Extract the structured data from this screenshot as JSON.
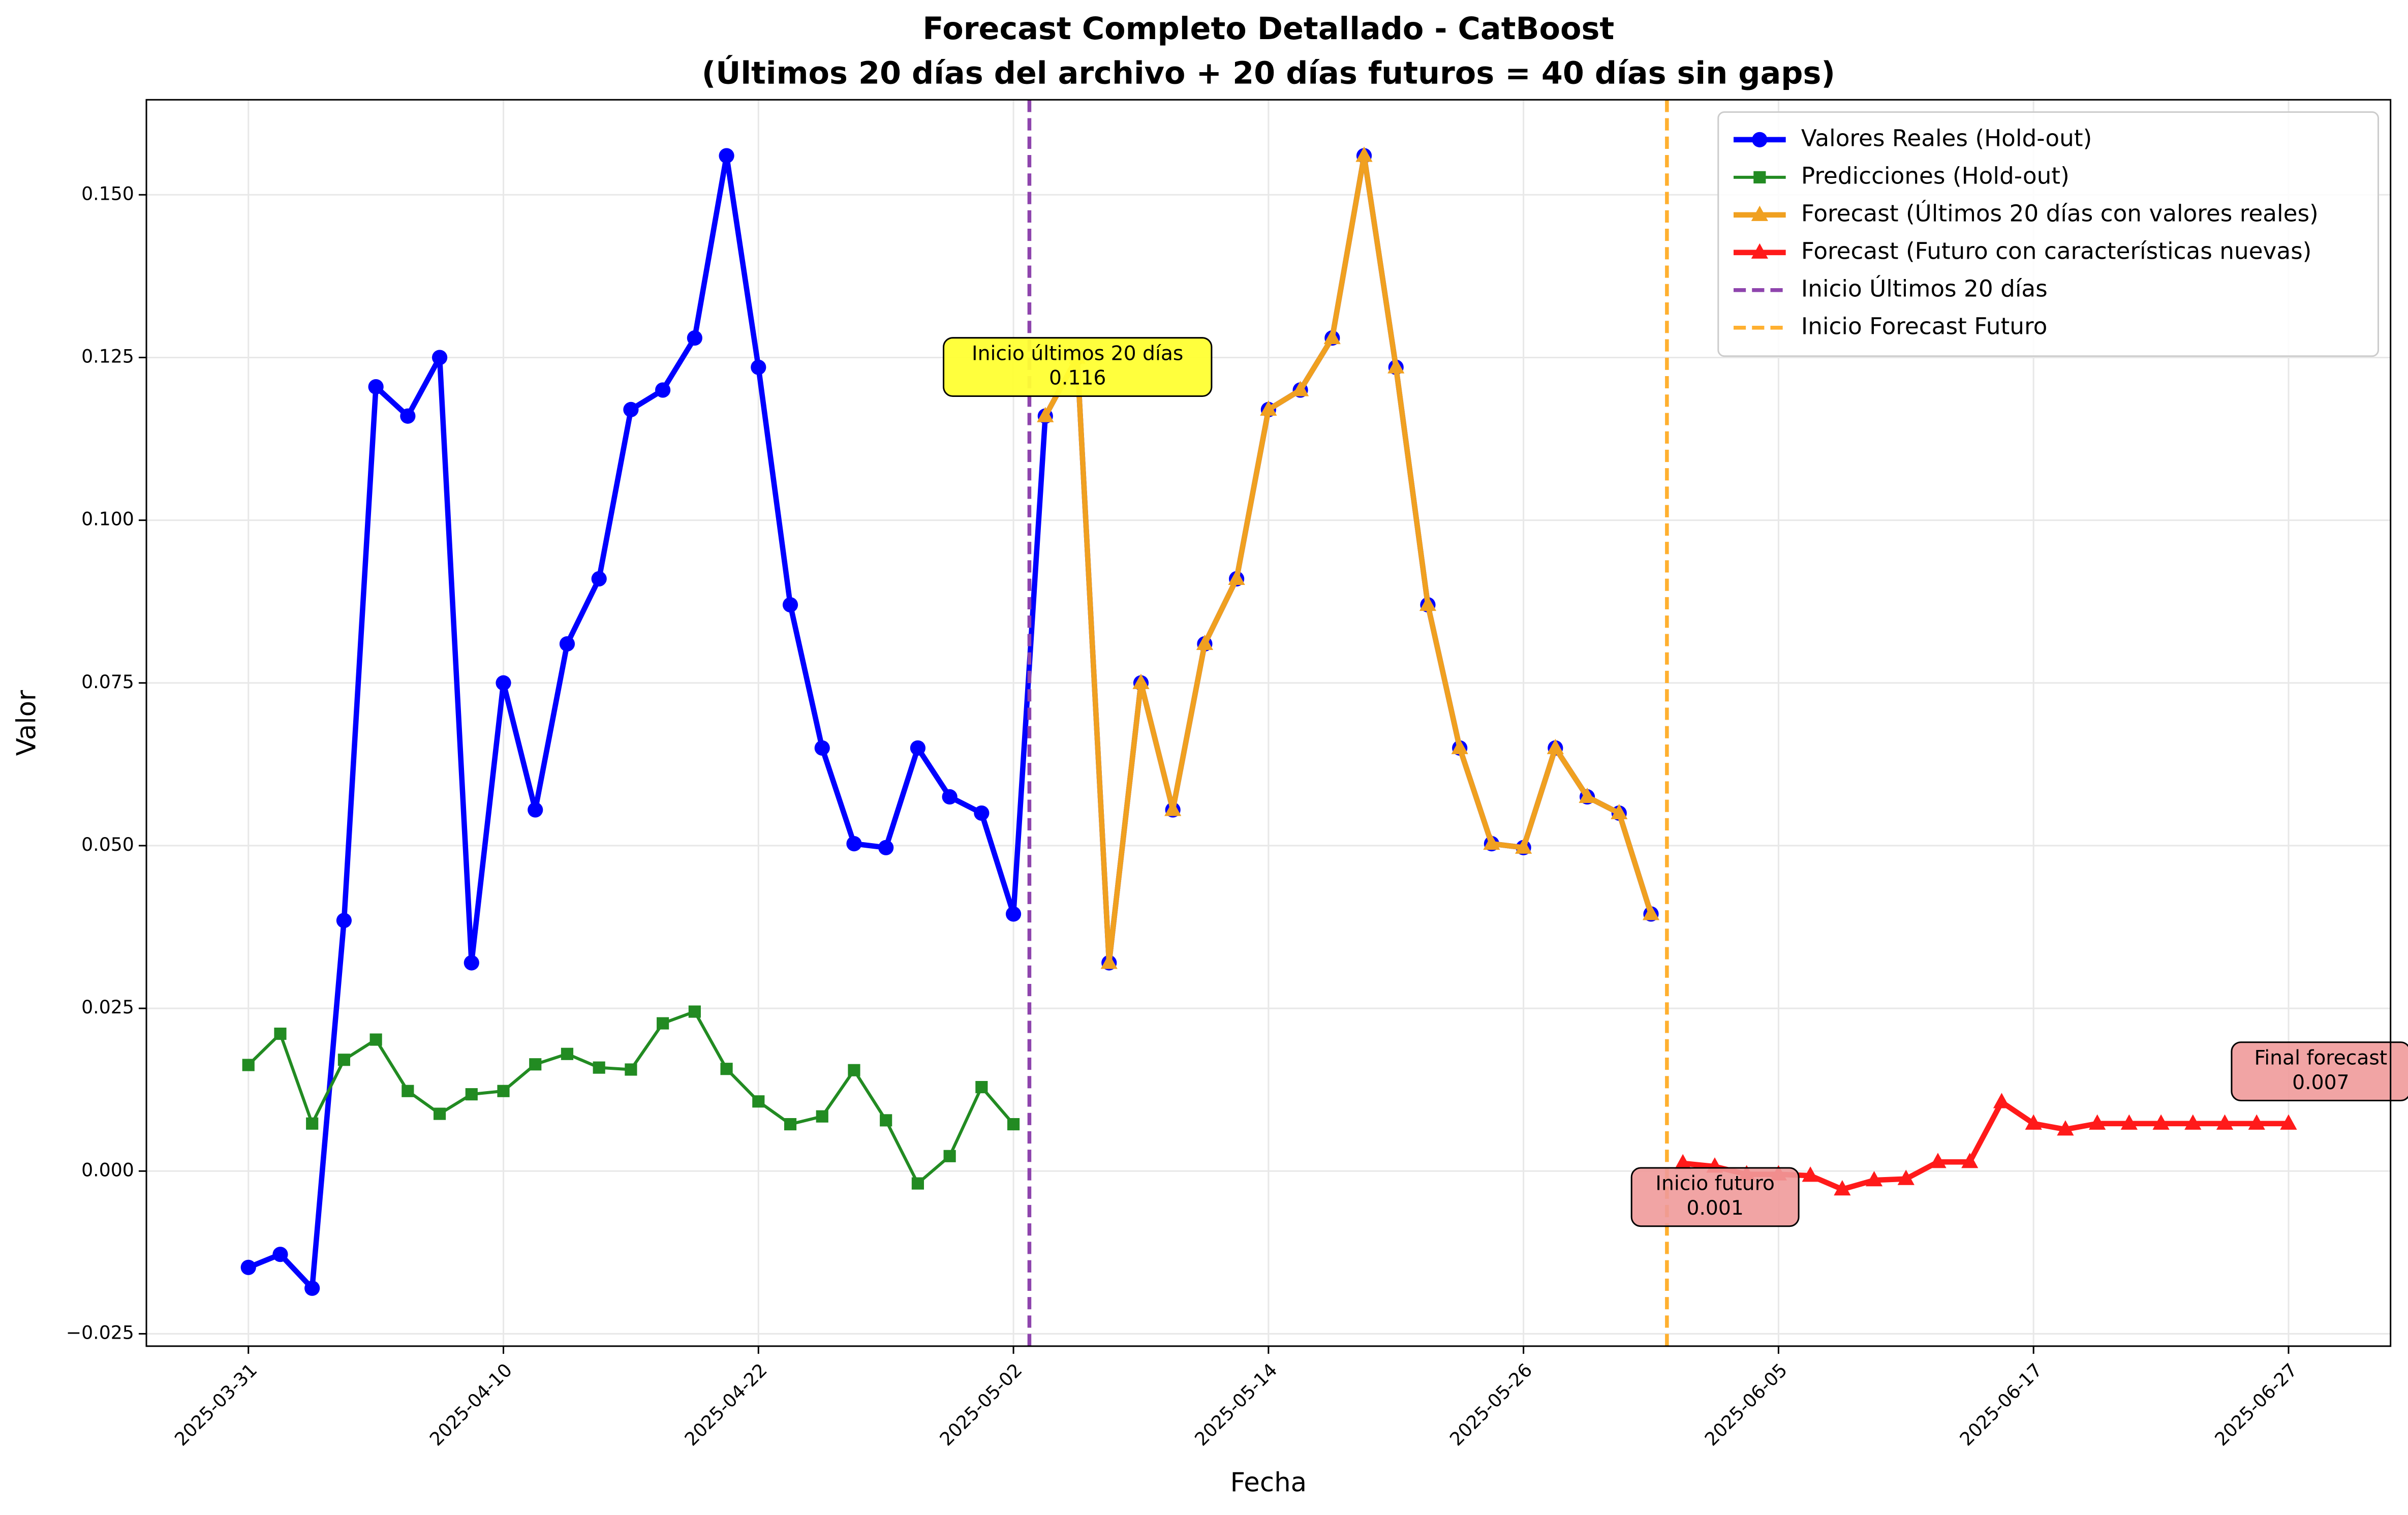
{
  "chart_data": {
    "type": "line",
    "title": [
      "Forecast Completo Detallado - CatBoost",
      "(Últimos 20 días del archivo + 20 días futuros = 40 días sin gaps)"
    ],
    "xlabel": "Fecha",
    "ylabel": "Valor",
    "x": [
      "2025-03-31",
      "2025-04-01",
      "2025-04-02",
      "2025-04-03",
      "2025-04-04",
      "2025-04-07",
      "2025-04-08",
      "2025-04-09",
      "2025-04-10",
      "2025-04-11",
      "2025-04-14",
      "2025-04-15",
      "2025-04-16",
      "2025-04-17",
      "2025-04-18",
      "2025-04-21",
      "2025-04-22",
      "2025-04-23",
      "2025-04-24",
      "2025-04-25",
      "2025-04-28",
      "2025-04-29",
      "2025-04-30",
      "2025-05-01",
      "2025-05-02",
      "2025-05-05",
      "2025-05-06",
      "2025-05-07",
      "2025-05-08",
      "2025-05-09",
      "2025-05-12",
      "2025-05-13",
      "2025-05-14",
      "2025-05-15",
      "2025-05-16",
      "2025-05-19",
      "2025-05-20",
      "2025-05-21",
      "2025-05-22",
      "2025-05-23",
      "2025-05-26",
      "2025-05-27",
      "2025-05-28",
      "2025-05-29",
      "2025-05-30",
      "2025-06-02",
      "2025-06-03",
      "2025-06-04",
      "2025-06-05",
      "2025-06-06",
      "2025-06-09",
      "2025-06-10",
      "2025-06-11",
      "2025-06-12",
      "2025-06-13",
      "2025-06-16",
      "2025-06-17",
      "2025-06-18",
      "2025-06-19",
      "2025-06-20",
      "2025-06-23",
      "2025-06-24",
      "2025-06-25",
      "2025-06-26",
      "2025-06-27"
    ],
    "xticks": [
      "2025-03-31",
      "2025-04-10",
      "2025-04-22",
      "2025-05-02",
      "2025-05-14",
      "2025-05-26",
      "2025-06-05",
      "2025-06-17",
      "2025-06-27"
    ],
    "ylim": [
      -0.0269,
      0.1646
    ],
    "yticks": [
      {
        "value": -0.025,
        "label": "−0.025"
      },
      {
        "value": 0,
        "label": "0.000"
      },
      {
        "value": 0.025,
        "label": "0.025"
      },
      {
        "value": 0.05,
        "label": "0.050"
      },
      {
        "value": 0.075,
        "label": "0.075"
      },
      {
        "value": 0.1,
        "label": "0.100"
      },
      {
        "value": 0.125,
        "label": "0.125"
      },
      {
        "value": 0.15,
        "label": "0.150"
      }
    ],
    "grid": true,
    "legend": "upper right",
    "series": [
      {
        "name": "Valores Reales (Hold-out)",
        "color": "#0000ff",
        "marker": "o",
        "width": 3.5,
        "values": [
          -0.0148,
          -0.0128,
          -0.018,
          0.0385,
          0.1205,
          0.116,
          0.125,
          0.032,
          0.075,
          0.0555,
          0.081,
          0.091,
          0.117,
          0.12,
          0.128,
          0.156,
          0.1235,
          0.087,
          0.065,
          0.0503,
          0.0497,
          0.065,
          0.0575,
          0.055,
          0.0395,
          0.116,
          0.125,
          0.032,
          0.075,
          0.0555,
          0.081,
          0.091,
          0.117,
          0.12,
          0.128,
          0.156,
          0.1235,
          0.087,
          0.065,
          0.0503,
          0.0497,
          0.065,
          0.0575,
          0.055,
          0.0395,
          null,
          null,
          null,
          null,
          null,
          null,
          null,
          null,
          null,
          null,
          null,
          null,
          null,
          null,
          null,
          null,
          null,
          null,
          null,
          null
        ]
      },
      {
        "name": "Predicciones (Hold-out)",
        "color": "#228b22",
        "marker": "s",
        "width": 2,
        "values": [
          0.0163,
          0.0211,
          0.0073,
          0.0171,
          0.0202,
          0.0123,
          0.0088,
          0.0118,
          0.0123,
          0.0164,
          0.018,
          0.0159,
          0.0156,
          0.0227,
          0.0245,
          0.0157,
          0.0107,
          0.0072,
          0.0084,
          0.0155,
          0.0078,
          -0.0019,
          0.0023,
          0.0129,
          0.0072,
          null,
          null,
          null,
          null,
          null,
          null,
          null,
          null,
          null,
          null,
          null,
          null,
          null,
          null,
          null,
          null,
          null,
          null,
          null,
          null,
          null,
          null,
          null,
          null,
          null,
          null,
          null,
          null,
          null,
          null,
          null,
          null,
          null,
          null,
          null,
          null,
          null,
          null,
          null,
          null
        ]
      },
      {
        "name": "Forecast (Últimos 20 días con valores reales)",
        "color": "#f0a020",
        "marker": "^",
        "width": 3.5,
        "values": [
          null,
          null,
          null,
          null,
          null,
          null,
          null,
          null,
          null,
          null,
          null,
          null,
          null,
          null,
          null,
          null,
          null,
          null,
          null,
          null,
          null,
          null,
          null,
          null,
          null,
          0.116,
          0.125,
          0.032,
          0.075,
          0.0555,
          0.081,
          0.091,
          0.117,
          0.12,
          0.128,
          0.156,
          0.1235,
          0.087,
          0.065,
          0.0503,
          0.0497,
          0.065,
          0.0575,
          0.055,
          0.0395,
          null,
          null,
          null,
          null,
          null,
          null,
          null,
          null,
          null,
          null,
          null,
          null,
          null,
          null,
          null,
          null,
          null,
          null,
          null,
          null
        ]
      },
      {
        "name": "Forecast (Futuro con características nuevas)",
        "color": "#ff1a1a",
        "marker": "^",
        "width": 3.5,
        "values": [
          null,
          null,
          null,
          null,
          null,
          null,
          null,
          null,
          null,
          null,
          null,
          null,
          null,
          null,
          null,
          null,
          null,
          null,
          null,
          null,
          null,
          null,
          null,
          null,
          null,
          null,
          null,
          null,
          null,
          null,
          null,
          null,
          null,
          null,
          null,
          null,
          null,
          null,
          null,
          null,
          null,
          null,
          null,
          null,
          null,
          0.0012,
          0.0007,
          -0.0005,
          -0.0005,
          -0.0007,
          -0.0028,
          -0.0014,
          -0.0012,
          0.0014,
          0.0014,
          0.0106,
          0.0073,
          0.0064,
          0.0073,
          0.0073,
          0.0073,
          0.0073,
          0.0073,
          0.0073,
          0.0073
        ]
      }
    ],
    "vlines": [
      {
        "name": "Inicio Últimos 20 días",
        "color": "#8e44ad",
        "after": "2025-05-02"
      },
      {
        "name": "Inicio Forecast Futuro",
        "color": "#ffb030",
        "after": "2025-05-30"
      }
    ],
    "annotations": [
      {
        "text": [
          "Inicio últimos 20 días",
          "0.116"
        ],
        "x": "2025-05-05",
        "y": 0.116,
        "color": "#ffff33"
      },
      {
        "text": [
          "Inicio futuro",
          "0.001"
        ],
        "x": "2025-06-02",
        "y": 0.0012,
        "color": "#f09a9a"
      },
      {
        "text": [
          "Final forecast",
          "0.007"
        ],
        "x": "2025-06-27",
        "y": 0.0073,
        "color": "#f09a9a"
      }
    ]
  }
}
